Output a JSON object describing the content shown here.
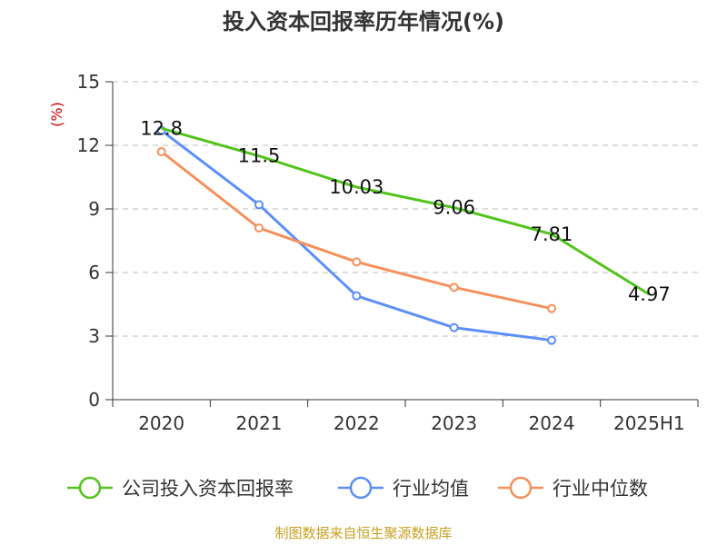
{
  "colors": {
    "company": "#52c41a",
    "industry_avg": "#5b8ff9",
    "industry_median": "#f6905a",
    "grid": "#bbbbbb",
    "unit": "#cc0000",
    "source": "#c8a020"
  },
  "source_text": "制图数据来自恒生聚源数据库",
  "chart_data": {
    "type": "line",
    "title": "投入资本回报率历年情况(%)",
    "ylabel": "(%)",
    "xlabel": "",
    "categories": [
      "2020",
      "2021",
      "2022",
      "2023",
      "2024",
      "2025H1"
    ],
    "ylim": [
      0,
      15
    ],
    "yticks": [
      0,
      3,
      6,
      9,
      12,
      15
    ],
    "grid": true,
    "legend_position": "bottom",
    "series": [
      {
        "name": "公司投入资本回报率",
        "color": "#52c41a",
        "values": [
          12.8,
          11.5,
          10.03,
          9.06,
          7.81,
          4.97
        ],
        "labels": [
          "12.8",
          "11.5",
          "10.03",
          "9.06",
          "7.81",
          "4.97"
        ],
        "show_markers": false,
        "show_labels": true
      },
      {
        "name": "行业均值",
        "color": "#5b8ff9",
        "values": [
          12.7,
          9.2,
          4.9,
          3.4,
          2.8,
          null
        ],
        "show_markers": true,
        "show_labels": false
      },
      {
        "name": "行业中位数",
        "color": "#f6905a",
        "values": [
          11.7,
          8.1,
          6.5,
          5.3,
          4.3,
          null
        ],
        "show_markers": true,
        "show_labels": false
      }
    ]
  }
}
